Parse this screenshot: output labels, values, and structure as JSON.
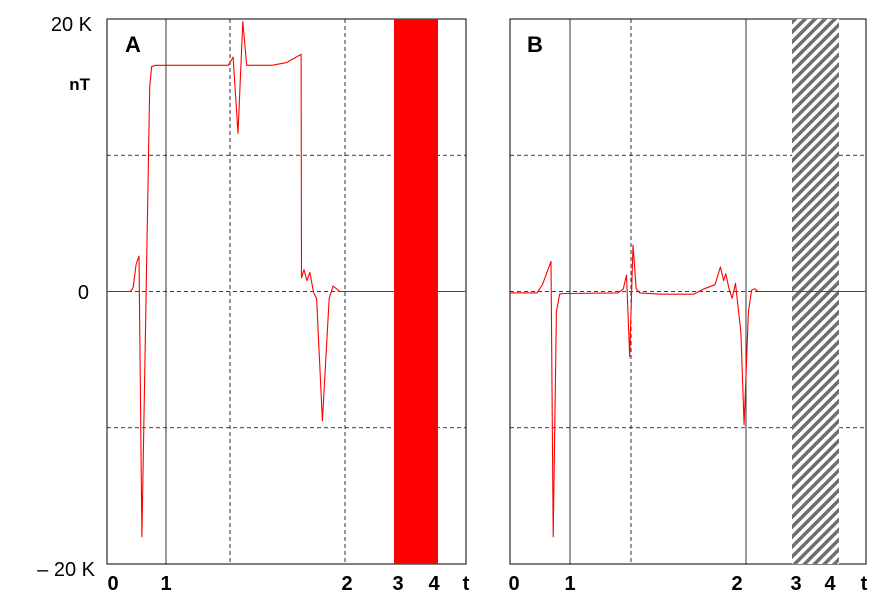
{
  "chart_data": [
    {
      "panel": "A",
      "type": "line",
      "ylabel_top": "20 K",
      "ylabel_zero": "0",
      "ylabel_bottom": "– 20 K",
      "unit": "nT",
      "ylim": [
        -20000,
        20000
      ],
      "xtick_labels": [
        "0",
        "1",
        "2",
        "3",
        "4",
        "t"
      ],
      "y_gridlines": [
        10000,
        0,
        -10000
      ],
      "shaded_band": {
        "style": "solid",
        "color": "#ff0000"
      },
      "series": [
        {
          "color": "#ff0000",
          "points": [
            [
              0.0,
              0
            ],
            [
              0.24,
              0
            ],
            [
              0.27,
              300
            ],
            [
              0.3,
              2000
            ],
            [
              0.33,
              2600
            ],
            [
              0.36,
              -18000
            ],
            [
              0.44,
              15000
            ],
            [
              0.46,
              16500
            ],
            [
              0.5,
              16600
            ],
            [
              1.25,
              16600
            ],
            [
              1.3,
              17200
            ],
            [
              1.35,
              11600
            ],
            [
              1.4,
              19800
            ],
            [
              1.44,
              16600
            ],
            [
              1.7,
              16600
            ],
            [
              1.85,
              16800
            ],
            [
              2.0,
              17400
            ],
            [
              2.005,
              1000
            ],
            [
              2.03,
              1600
            ],
            [
              2.06,
              800
            ],
            [
              2.09,
              1400
            ],
            [
              2.13,
              -100
            ],
            [
              2.16,
              -500
            ],
            [
              2.19,
              -5000
            ],
            [
              2.22,
              -9500
            ],
            [
              2.27,
              -3000
            ],
            [
              2.29,
              -500
            ],
            [
              2.33,
              400
            ],
            [
              2.4,
              0
            ],
            [
              3.0,
              0
            ],
            [
              3.7,
              0
            ]
          ]
        }
      ]
    },
    {
      "panel": "B",
      "type": "line",
      "unit": "",
      "ylim": [
        -20000,
        20000
      ],
      "xtick_labels": [
        "0",
        "1",
        "2",
        "3",
        "4",
        "t"
      ],
      "y_gridlines": [
        10000,
        0,
        -10000
      ],
      "shaded_band": {
        "style": "hatched",
        "color": "#777777"
      },
      "series": [
        {
          "color": "#ff0000",
          "points": [
            [
              0.0,
              -100
            ],
            [
              0.25,
              -100
            ],
            [
              0.3,
              500
            ],
            [
              0.38,
              2200
            ],
            [
              0.4,
              -18000
            ],
            [
              0.43,
              -1500
            ],
            [
              0.46,
              -200
            ],
            [
              0.5,
              -150
            ],
            [
              1.0,
              -100
            ],
            [
              1.05,
              200
            ],
            [
              1.08,
              1200
            ],
            [
              1.11,
              -4800
            ],
            [
              1.14,
              3400
            ],
            [
              1.17,
              200
            ],
            [
              1.2,
              -100
            ],
            [
              1.4,
              -200
            ],
            [
              1.7,
              -200
            ],
            [
              1.8,
              200
            ],
            [
              1.9,
              500
            ],
            [
              1.95,
              1800
            ],
            [
              1.98,
              800
            ],
            [
              2.0,
              1300
            ],
            [
              2.03,
              200
            ],
            [
              2.06,
              -500
            ],
            [
              2.09,
              600
            ],
            [
              2.14,
              -3000
            ],
            [
              2.17,
              -9800
            ],
            [
              2.21,
              -1500
            ],
            [
              2.24,
              100
            ],
            [
              2.27,
              200
            ],
            [
              2.3,
              0
            ],
            [
              2.7,
              0
            ],
            [
              3.3,
              0
            ]
          ]
        }
      ]
    }
  ]
}
